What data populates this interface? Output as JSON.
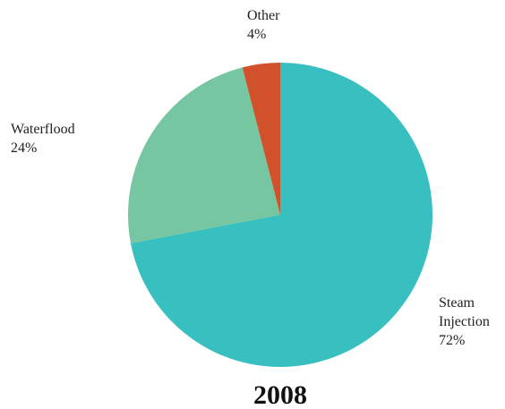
{
  "chart_data": {
    "type": "pie",
    "title": "2008",
    "slices": [
      {
        "label": [
          "Steam",
          "Injection"
        ],
        "pct_text": "72%",
        "value": 72,
        "color": "#38bfbf"
      },
      {
        "label": [
          "Waterflood"
        ],
        "pct_text": "24%",
        "value": 24,
        "color": "#76c6a2"
      },
      {
        "label": [
          "Other"
        ],
        "pct_text": "4%",
        "value": 4,
        "color": "#d1522a"
      }
    ]
  }
}
